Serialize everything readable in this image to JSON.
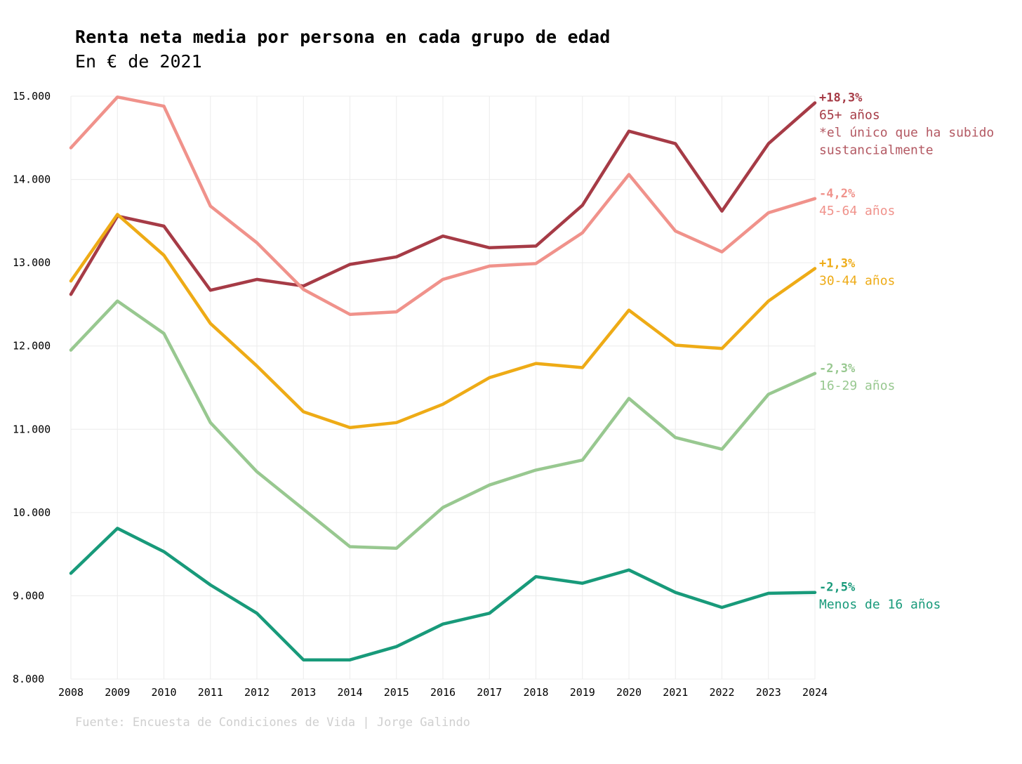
{
  "chart_data": {
    "type": "line",
    "title": "Renta neta media por persona en cada grupo de edad",
    "subtitle": "En € de 2021",
    "source": "Fuente: Encuesta de Condiciones de Vida | Jorge Galindo",
    "x": [
      "2008",
      "2009",
      "2010",
      "2011",
      "2012",
      "2013",
      "2014",
      "2015",
      "2016",
      "2017",
      "2018",
      "2019",
      "2020",
      "2021",
      "2022",
      "2023",
      "2024"
    ],
    "ylim": [
      8000,
      15000
    ],
    "yticks": [
      8000,
      9000,
      10000,
      11000,
      12000,
      13000,
      14000,
      15000
    ],
    "ytick_labels": [
      "8.000",
      "9.000",
      "10.000",
      "11.000",
      "12.000",
      "13.000",
      "14.000",
      "15.000"
    ],
    "grid": true,
    "legend": "direct labels at line ends (right)",
    "series": [
      {
        "name": "65+ años",
        "change": "+18,3%",
        "note": [
          "*el único que ha subido",
          "sustancialmente"
        ],
        "color": "#a63b46",
        "values": [
          12620,
          13560,
          13440,
          12670,
          12800,
          12720,
          12980,
          13070,
          13320,
          13180,
          13200,
          13690,
          14580,
          14430,
          13620,
          14430,
          14920
        ]
      },
      {
        "name": "45-64 años",
        "change": "-4,2%",
        "color": "#f0928b",
        "values": [
          14380,
          14990,
          14880,
          13680,
          13240,
          12680,
          12380,
          12410,
          12800,
          12960,
          12990,
          13360,
          14060,
          13380,
          13130,
          13600,
          13770
        ]
      },
      {
        "name": "30-44 años",
        "change": "+1,3%",
        "color": "#eeab16",
        "values": [
          12780,
          13580,
          13090,
          12270,
          11760,
          11210,
          11020,
          11080,
          11300,
          11620,
          11790,
          11740,
          12430,
          12010,
          11970,
          12540,
          12930
        ]
      },
      {
        "name": "16-29 años",
        "change": "-2,3%",
        "color": "#98c890",
        "values": [
          11950,
          12540,
          12150,
          11080,
          10490,
          10040,
          9590,
          9570,
          10060,
          10330,
          10510,
          10630,
          11370,
          10900,
          10760,
          11420,
          11670
        ]
      },
      {
        "name": "Menos de 16 años",
        "change": "-2,5%",
        "color": "#189a7a",
        "values": [
          9270,
          9810,
          9530,
          9130,
          8790,
          8230,
          8230,
          8390,
          8660,
          8790,
          9230,
          9150,
          9310,
          9040,
          8860,
          9030,
          9040
        ]
      }
    ]
  }
}
